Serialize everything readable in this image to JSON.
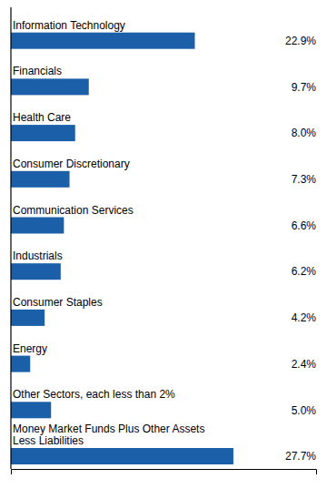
{
  "chart_data": {
    "type": "bar",
    "orientation": "horizontal",
    "categories": [
      "Information Technology",
      "Financials",
      "Health Care",
      "Consumer Discretionary",
      "Communication Services",
      "Industrials",
      "Consumer Staples",
      "Energy",
      "Other Sectors, each less than 2%",
      "Money Market Funds Plus Other Assets\nLess Liabilities"
    ],
    "values": [
      22.9,
      9.7,
      8.0,
      7.3,
      6.6,
      6.2,
      4.2,
      2.4,
      5.0,
      27.7
    ],
    "value_labels": [
      "22.9%",
      "9.7%",
      "8.0%",
      "7.3%",
      "6.6%",
      "6.2%",
      "4.2%",
      "2.4%",
      "5.0%",
      "27.7%"
    ],
    "data_labels": true,
    "color": "#1a5fa8",
    "xlim": [
      0,
      38
    ],
    "tick_labels": false
  }
}
